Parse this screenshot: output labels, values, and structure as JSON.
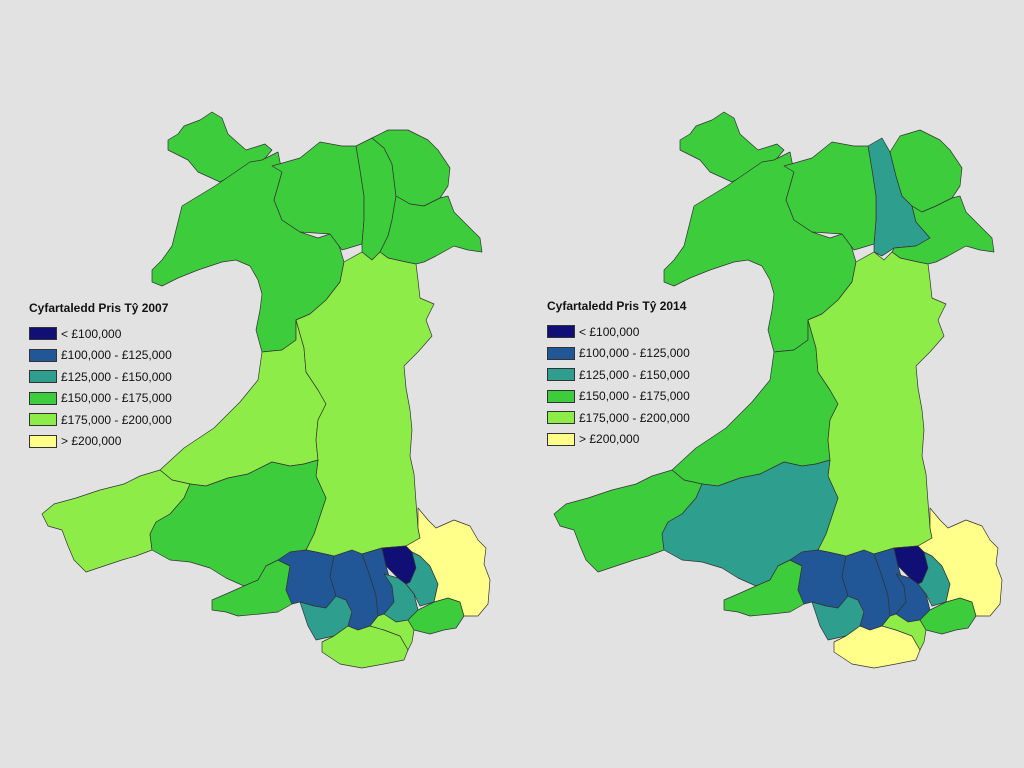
{
  "palette": {
    "lt100": "#0f0f76",
    "b100_125": "#215797",
    "b125_150": "#2e9e8e",
    "b150_175": "#3ccc3c",
    "b175_200": "#8eec48",
    "gt200": "#ffff8a"
  },
  "maps": [
    {
      "legend": {
        "title": "Cyfartaledd Pris Tŷ 2007",
        "items": [
          {
            "key": "lt100",
            "label": "< £100,000"
          },
          {
            "key": "b100_125",
            "label": "£100,000 - £125,000"
          },
          {
            "key": "b125_150",
            "label": "£125,000 - £150,000"
          },
          {
            "key": "b150_175",
            "label": "£150,000 - £175,000"
          },
          {
            "key": "b175_200",
            "label": "£175,000 - £200,000"
          },
          {
            "key": "gt200",
            "label": "> £200,000"
          }
        ]
      },
      "regions": {
        "anglesey": "b150_175",
        "gwynedd": "b150_175",
        "conwy": "b150_175",
        "denbighshire": "b150_175",
        "flintshire": "b150_175",
        "wrexham": "b150_175",
        "ceredigion": "b175_200",
        "powys": "b175_200",
        "pembrokeshire": "b175_200",
        "carmarthenshire": "b150_175",
        "swansea": "b150_175",
        "neath_port_talbot": "b100_125",
        "bridgend": "b125_150",
        "vale_of_glamorgan": "b175_200",
        "rhondda_cynon_taf": "b100_125",
        "merthyr_tydfil": "b100_125",
        "blaenau_gwent": "lt100",
        "caerphilly": "b125_150",
        "torfaen": "b125_150",
        "cardiff": "b175_200",
        "newport": "b150_175",
        "monmouthshire": "gt200"
      }
    },
    {
      "legend": {
        "title": "Cyfartaledd Pris Tŷ 2014",
        "items": [
          {
            "key": "lt100",
            "label": "< £100,000"
          },
          {
            "key": "b100_125",
            "label": "£100,000 - £125,000"
          },
          {
            "key": "b125_150",
            "label": "£125,000 - £150,000"
          },
          {
            "key": "b150_175",
            "label": "£150,000 - £175,000"
          },
          {
            "key": "b175_200",
            "label": "£175,000 - £200,000"
          },
          {
            "key": "gt200",
            "label": "> £200,000"
          }
        ]
      },
      "regions": {
        "anglesey": "b150_175",
        "gwynedd": "b150_175",
        "conwy": "b125_150",
        "denbighshire": "b150_175",
        "flintshire": "b150_175",
        "wrexham": "b150_175",
        "ceredigion": "b150_175",
        "powys": "b175_200",
        "pembrokeshire": "b150_175",
        "carmarthenshire": "b125_150",
        "swansea": "b150_175",
        "neath_port_talbot": "b100_125",
        "bridgend": "b125_150",
        "vale_of_glamorgan": "gt200",
        "rhondda_cynon_taf": "b100_125",
        "merthyr_tydfil": "b100_125",
        "blaenau_gwent": "lt100",
        "caerphilly": "b100_125",
        "torfaen": "b125_150",
        "cardiff": "b175_200",
        "newport": "b150_175",
        "monmouthshire": "gt200"
      }
    }
  ]
}
